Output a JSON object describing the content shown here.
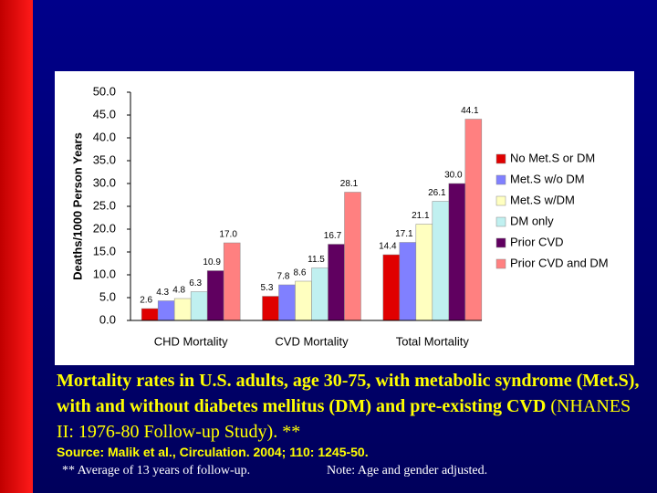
{
  "chart_data": {
    "type": "bar",
    "ylabel": "Deaths/1000 Person Years",
    "categories": [
      "CHD Mortality",
      "CVD Mortality",
      "Total Mortality"
    ],
    "series": [
      {
        "name": "No Met.S or DM",
        "color": "#e00000",
        "values": [
          2.6,
          5.3,
          14.4
        ],
        "value_labels": [
          "2.6",
          "5.3",
          "14.4"
        ]
      },
      {
        "name": "Met.S w/o DM",
        "color": "#8080ff",
        "values": [
          4.3,
          7.8,
          17.1
        ],
        "value_labels": [
          "4.3",
          "7.8",
          "17.1"
        ]
      },
      {
        "name": "Met.S w/DM",
        "color": "#ffffc0",
        "values": [
          4.8,
          8.6,
          21.1
        ],
        "value_labels": [
          "4.8",
          "8.6",
          "21.1"
        ]
      },
      {
        "name": "DM only",
        "color": "#c0f0f0",
        "values": [
          6.3,
          11.5,
          26.1
        ],
        "value_labels": [
          "6.3",
          "11.5",
          "26.1"
        ]
      },
      {
        "name": "Prior CVD",
        "color": "#600060",
        "values": [
          10.9,
          16.7,
          30.0
        ],
        "value_labels": [
          "10.9",
          "16.7",
          "30.0"
        ]
      },
      {
        "name": "Prior CVD and DM",
        "color": "#ff8080",
        "values": [
          17.0,
          28.1,
          44.1
        ],
        "value_labels": [
          "17.0",
          "28.1",
          "44.1"
        ]
      }
    ],
    "ylim": [
      0,
      50
    ],
    "yticks": [
      {
        "value": 0,
        "label": "0.0"
      },
      {
        "value": 5,
        "label": "5.0"
      },
      {
        "value": 10,
        "label": "10.0"
      },
      {
        "value": 15,
        "label": "15.0"
      },
      {
        "value": 20,
        "label": "20.0"
      },
      {
        "value": 25,
        "label": "25.0"
      },
      {
        "value": 30,
        "label": "30.0"
      },
      {
        "value": 35,
        "label": "35.0"
      },
      {
        "value": 40,
        "label": "40.0"
      },
      {
        "value": 45,
        "label": "45.0"
      },
      {
        "value": 50,
        "label": "50.0"
      }
    ],
    "grid": false,
    "legend": "right"
  },
  "caption": {
    "bold": "Mortality rates in U.S. adults,  age 30-75, with metabolic syndrome (Met.S), with and without diabetes mellitus (DM) and pre-existing CVD",
    "normal": " (NHANES II: 1976-80 Follow-up Study).  **",
    "source": "Source: Malik et al., Circulation. 2004; 110: 1245-50.",
    "footnote": "** Average of 13 years of follow-up.",
    "note": "Note: Age and gender adjusted."
  }
}
